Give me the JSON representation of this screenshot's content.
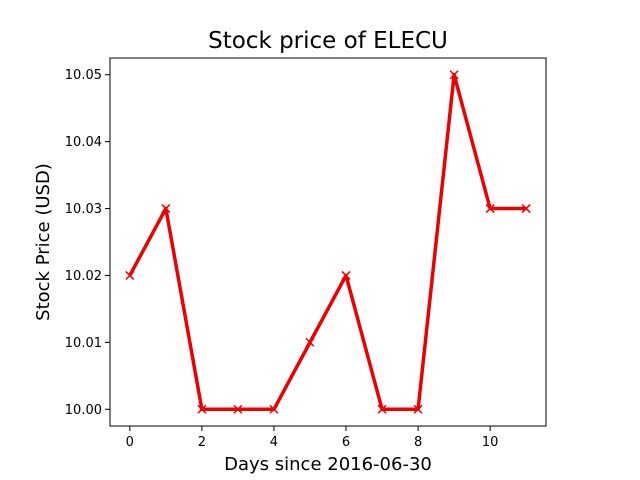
{
  "chart_data": {
    "type": "line",
    "title": "Stock price of ELECU",
    "xlabel": "Days since 2016-06-30",
    "ylabel": "Stock Price (USD)",
    "x": [
      0,
      1,
      2,
      3,
      4,
      5,
      6,
      7,
      8,
      9,
      10,
      11
    ],
    "series": [
      {
        "values": [
          10.02,
          10.03,
          10.0,
          10.0,
          10.0,
          10.01,
          10.02,
          10.0,
          10.0,
          10.05,
          10.03,
          10.03
        ],
        "color": "#ee0000",
        "marker": "x"
      }
    ],
    "xlim": [
      -0.55,
      11.55
    ],
    "ylim": [
      9.9975,
      10.0525
    ],
    "xticks": [
      0,
      2,
      4,
      6,
      8,
      10
    ],
    "xtick_labels": [
      "0",
      "2",
      "4",
      "6",
      "8",
      "10"
    ],
    "yticks": [
      10.0,
      10.01,
      10.02,
      10.03,
      10.04,
      10.05
    ],
    "ytick_labels": [
      "10.00",
      "10.01",
      "10.02",
      "10.03",
      "10.04",
      "10.05"
    ],
    "grid": false,
    "legend": false
  }
}
